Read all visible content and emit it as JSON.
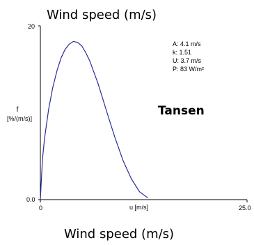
{
  "chart_data": {
    "type": "line",
    "title": "Wind speed (m/s)",
    "caption": "Wind speed (m/s)",
    "site_label": "Tansen",
    "xlabel": "u [m/s]",
    "ylabel": [
      "f",
      "[%/(m/s)]"
    ],
    "xlim": [
      0,
      25
    ],
    "ylim": [
      0,
      20
    ],
    "x_ticks": [
      {
        "value": 0,
        "label": "0"
      },
      {
        "value": 25,
        "label": "25.0"
      }
    ],
    "y_ticks": [
      {
        "value": 0,
        "label": "0.0"
      },
      {
        "value": 20,
        "label": "20"
      }
    ],
    "grid": false,
    "annotations": [
      "A: 4.1 m/s",
      "k: 1.51",
      "U: 3.7 m/s",
      "P: 83 W/m²"
    ],
    "weibull": {
      "A": 4.1,
      "k": 1.51
    },
    "series": [
      {
        "color": "#2b2b9a",
        "x": [
          0,
          0.25,
          0.5,
          1,
          1.5,
          2,
          2.5,
          3,
          3.5,
          4,
          4.5,
          5,
          5.5,
          6,
          7,
          8,
          9,
          10,
          11,
          12,
          13
        ],
        "y": [
          0,
          4.6,
          7.0,
          10.4,
          12.9,
          14.8,
          16.3,
          17.3,
          17.9,
          18.2,
          18.1,
          17.7,
          16.9,
          15.9,
          13.3,
          10.2,
          7.2,
          4.5,
          2.4,
          0.9,
          0.2
        ]
      }
    ]
  }
}
